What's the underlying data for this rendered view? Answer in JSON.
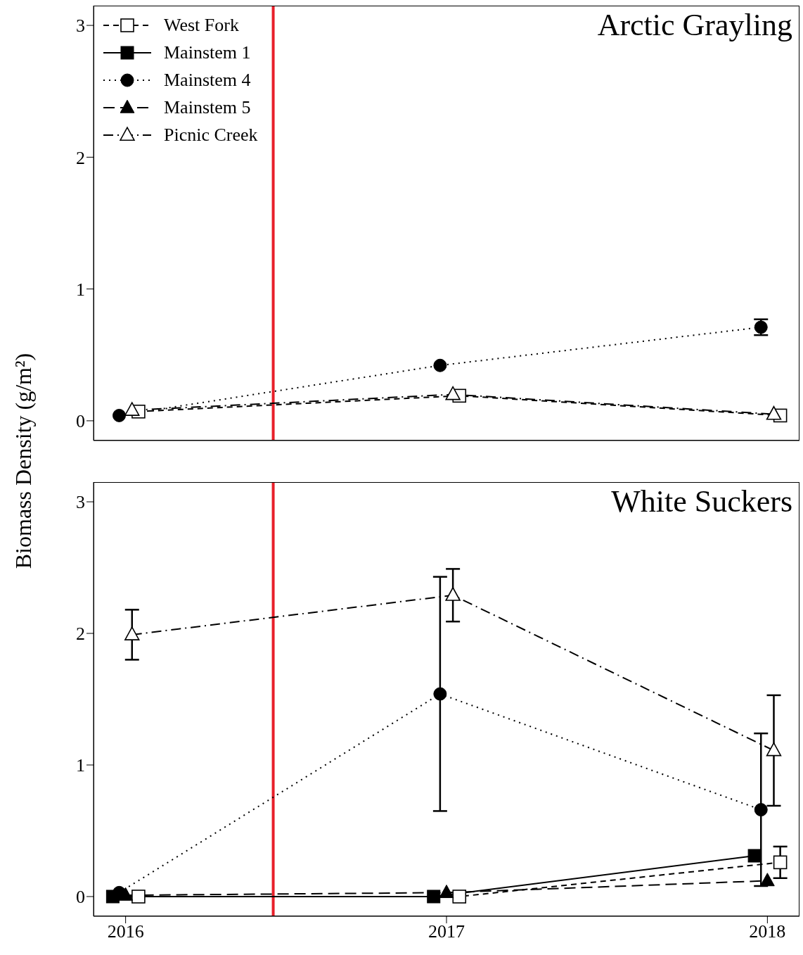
{
  "chart_data": [
    {
      "type": "line",
      "title": "Arctic Grayling",
      "ylabel": "Biomass Density  (g/m²)",
      "xlim": [
        2015.9,
        2018.1
      ],
      "xticks": [
        2016,
        2017,
        2018
      ],
      "ylim": [
        -0.15,
        3.15
      ],
      "yticks": [
        0,
        1,
        2,
        3
      ],
      "tick_labels": "y",
      "grid": false,
      "legend": "top left",
      "ref_lines": [
        {
          "axis": "x",
          "value": 2016.46,
          "color": "#e8202a"
        }
      ],
      "series": [
        {
          "name": "West Fork",
          "color": "#000000",
          "marker": "square-open",
          "line_style": "dashed",
          "x": [
            2016.04,
            2017.04,
            2018.04
          ],
          "values": [
            0.07,
            0.19,
            0.04
          ]
        },
        {
          "name": "Mainstem 1",
          "color": "#000000",
          "marker": "square",
          "line_style": "solid"
        },
        {
          "name": "Mainstem 4",
          "color": "#000000",
          "marker": "circle",
          "line_style": "dotted",
          "x": [
            2015.98,
            2016.98,
            2017.98
          ],
          "values": [
            0.04,
            0.42,
            0.71
          ],
          "errors": [
            null,
            null,
            0.06
          ]
        },
        {
          "name": "Mainstem 5",
          "color": "#000000",
          "marker": "triangle",
          "line_style": "longdash"
        },
        {
          "name": "Picnic Creek",
          "color": "#000000",
          "marker": "triangle-open",
          "line_style": "dashdot",
          "x": [
            2016.02,
            2017.02,
            2018.02
          ],
          "values": [
            0.08,
            0.2,
            0.05
          ]
        }
      ]
    },
    {
      "type": "line",
      "title": "White Suckers",
      "xlim": [
        2015.9,
        2018.1
      ],
      "xticks": [
        2016,
        2017,
        2018
      ],
      "ylim": [
        -0.15,
        3.15
      ],
      "yticks": [
        0,
        1,
        2,
        3
      ],
      "grid": false,
      "ref_lines": [
        {
          "axis": "x",
          "value": 2016.46,
          "color": "#e8202a"
        }
      ],
      "series": [
        {
          "color": "#000000",
          "marker": "square-open",
          "line_style": "dashed",
          "x": [
            2016.04,
            2017.04,
            2018.04
          ],
          "values": [
            0,
            0,
            0.26
          ],
          "errors": [
            null,
            null,
            0.12
          ]
        },
        {
          "color": "#000000",
          "marker": "square",
          "line_style": "solid",
          "x": [
            2015.96,
            2016.96,
            2017.96
          ],
          "values": [
            0,
            0,
            0.31
          ]
        },
        {
          "color": "#000000",
          "marker": "circle",
          "line_style": "dotted",
          "x": [
            2015.98,
            2016.98,
            2017.98
          ],
          "values": [
            0.03,
            1.54,
            0.66
          ],
          "errors": [
            null,
            0.89,
            0.58
          ]
        },
        {
          "color": "#000000",
          "marker": "triangle",
          "line_style": "longdash",
          "x": [
            2016,
            2017,
            2018
          ],
          "values": [
            0.01,
            0.03,
            0.12
          ]
        },
        {
          "color": "#000000",
          "marker": "triangle-open",
          "line_style": "dashdot",
          "x": [
            2016.02,
            2017.02,
            2018.02
          ],
          "values": [
            1.99,
            2.29,
            1.11
          ],
          "errors": [
            0.19,
            0.2,
            0.42
          ]
        }
      ]
    }
  ]
}
